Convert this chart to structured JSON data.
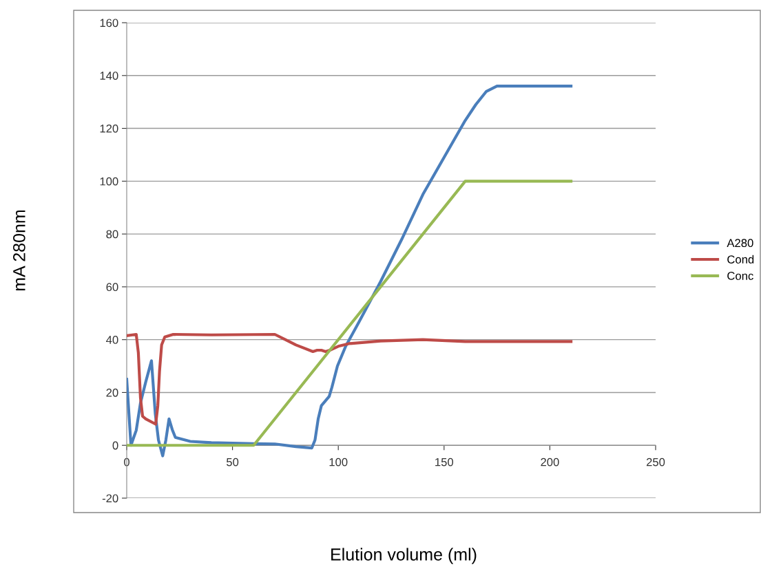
{
  "chart_data": {
    "type": "line",
    "xlabel": "Elution volume (ml)",
    "ylabel": "mA 280nm",
    "xlim": [
      0,
      250
    ],
    "xticks": [
      0,
      50,
      100,
      150,
      200,
      250
    ],
    "ylim": [
      -20,
      160
    ],
    "yticks": [
      -20,
      0,
      20,
      40,
      60,
      80,
      100,
      120,
      140,
      160
    ],
    "grid": "y",
    "legend": "right",
    "marker": "none",
    "line_style": "solid",
    "series": [
      {
        "name": "A280",
        "color": "#4a7ebb",
        "x": [
          0,
          2,
          4.5,
          6.5,
          9,
          11.7,
          13.5,
          15,
          17,
          18.5,
          20,
          21.5,
          23,
          30,
          40,
          50,
          60,
          70,
          80,
          87.5,
          89,
          90.5,
          92,
          95.7,
          97,
          99.6,
          103.5,
          110,
          115,
          120,
          130,
          140,
          150,
          160,
          165,
          170,
          175,
          190,
          210
        ],
        "values": [
          25,
          0,
          5.7,
          16,
          24,
          32,
          12,
          2,
          -4,
          2,
          10,
          6,
          3,
          1.5,
          1,
          0.8,
          0.6,
          0.5,
          -0.5,
          -1,
          2,
          10,
          15,
          18.5,
          22,
          30,
          37.5,
          47,
          54.5,
          62,
          78,
          95,
          109,
          123,
          129,
          134,
          136,
          136,
          136
        ]
      },
      {
        "name": "Cond",
        "color": "#be4b48",
        "x": [
          0,
          4.5,
          5.5,
          6.5,
          7.5,
          9,
          13.7,
          14.7,
          15.5,
          16.5,
          18,
          22,
          40,
          70,
          75,
          80,
          88,
          90,
          92,
          94,
          96,
          100,
          105,
          120,
          140,
          160,
          210
        ],
        "values": [
          41.5,
          42,
          35,
          18,
          11,
          10,
          8,
          15,
          28,
          38,
          41,
          42,
          41.8,
          42,
          40,
          38,
          35.5,
          36,
          36,
          35.5,
          36,
          37.5,
          38.5,
          39.5,
          40,
          39.3,
          39.3
        ]
      },
      {
        "name": "Conc",
        "color": "#98b954",
        "x": [
          0,
          60,
          160,
          210
        ],
        "values": [
          0,
          0,
          100,
          100
        ]
      }
    ]
  }
}
